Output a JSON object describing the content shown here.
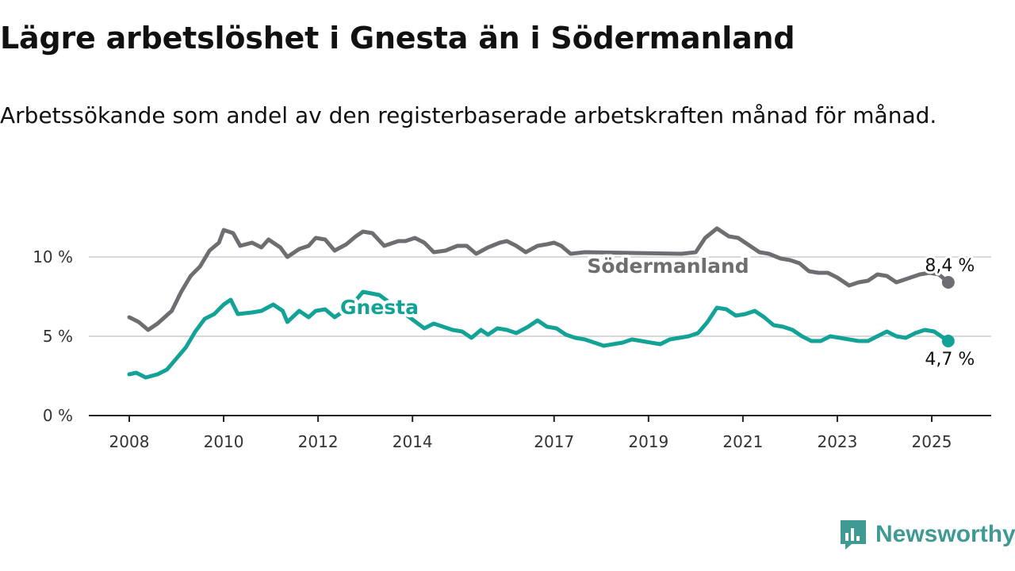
{
  "colors": {
    "gnesta": "#13a396",
    "sodermanland": "#6e6e72",
    "grid": "#d9d9d9",
    "axis": "#222222",
    "brand": "#3f9a94"
  },
  "brand": {
    "name": "Newsworthy",
    "icon": "bar-chart-speech-bubble-icon"
  },
  "chart_data": {
    "type": "line",
    "title": "Lägre arbetslöshet i Gnesta än i Södermanland",
    "subtitle": "Arbetssökande som andel av den registerbaserade arbetskraften månad för månad.",
    "xlabel": "",
    "ylabel": "",
    "x_ticks": [
      "2008",
      "2010",
      "2012",
      "2014",
      "2017",
      "2019",
      "2021",
      "2023",
      "2025"
    ],
    "y_ticks": [
      "0 %",
      "5 %",
      "10 %"
    ],
    "xlim": [
      2008,
      2025.4
    ],
    "ylim": [
      0,
      12
    ],
    "grid": true,
    "legend": "inline",
    "series": [
      {
        "name": "Södermanland",
        "end_label": "8,4 %",
        "values": [
          [
            2008.0,
            6.2
          ],
          [
            2008.2,
            5.9
          ],
          [
            2008.4,
            5.4
          ],
          [
            2008.6,
            5.8
          ],
          [
            2008.9,
            6.6
          ],
          [
            2009.1,
            7.8
          ],
          [
            2009.3,
            8.8
          ],
          [
            2009.5,
            9.4
          ],
          [
            2009.7,
            10.4
          ],
          [
            2009.9,
            10.9
          ],
          [
            2010.0,
            11.7
          ],
          [
            2010.2,
            11.5
          ],
          [
            2010.35,
            10.7
          ],
          [
            2010.6,
            10.9
          ],
          [
            2010.8,
            10.6
          ],
          [
            2010.95,
            11.1
          ],
          [
            2011.2,
            10.6
          ],
          [
            2011.35,
            10.0
          ],
          [
            2011.6,
            10.5
          ],
          [
            2011.8,
            10.7
          ],
          [
            2011.95,
            11.2
          ],
          [
            2012.15,
            11.1
          ],
          [
            2012.35,
            10.4
          ],
          [
            2012.6,
            10.8
          ],
          [
            2012.8,
            11.3
          ],
          [
            2012.95,
            11.6
          ],
          [
            2013.15,
            11.5
          ],
          [
            2013.4,
            10.7
          ],
          [
            2013.7,
            11.0
          ],
          [
            2013.85,
            11.0
          ],
          [
            2014.05,
            11.2
          ],
          [
            2014.25,
            10.9
          ],
          [
            2014.45,
            10.3
          ],
          [
            2014.7,
            10.4
          ],
          [
            2014.95,
            10.7
          ],
          [
            2015.15,
            10.7
          ],
          [
            2015.35,
            10.2
          ],
          [
            2015.6,
            10.6
          ],
          [
            2015.85,
            10.9
          ],
          [
            2016.0,
            11.0
          ],
          [
            2016.2,
            10.7
          ],
          [
            2016.4,
            10.3
          ],
          [
            2016.65,
            10.7
          ],
          [
            2016.85,
            10.8
          ],
          [
            2017.0,
            10.9
          ],
          [
            2017.15,
            10.7
          ],
          [
            2017.35,
            10.2
          ],
          [
            2017.65,
            10.3
          ],
          [
            2019.7,
            10.2
          ],
          [
            2020.0,
            10.3
          ],
          [
            2020.2,
            11.2
          ],
          [
            2020.45,
            11.8
          ],
          [
            2020.7,
            11.3
          ],
          [
            2020.9,
            11.2
          ],
          [
            2021.1,
            10.8
          ],
          [
            2021.35,
            10.3
          ],
          [
            2021.55,
            10.2
          ],
          [
            2021.8,
            9.9
          ],
          [
            2022.0,
            9.8
          ],
          [
            2022.2,
            9.6
          ],
          [
            2022.4,
            9.1
          ],
          [
            2022.6,
            9.0
          ],
          [
            2022.8,
            9.0
          ],
          [
            2023.0,
            8.7
          ],
          [
            2023.25,
            8.2
          ],
          [
            2023.45,
            8.4
          ],
          [
            2023.65,
            8.5
          ],
          [
            2023.85,
            8.9
          ],
          [
            2024.05,
            8.8
          ],
          [
            2024.25,
            8.4
          ],
          [
            2024.45,
            8.6
          ],
          [
            2024.75,
            8.9
          ],
          [
            2024.95,
            9.0
          ],
          [
            2025.15,
            8.9
          ],
          [
            2025.35,
            8.4
          ]
        ]
      },
      {
        "name": "Gnesta",
        "end_label": "4,7 %",
        "values": [
          [
            2008.0,
            2.6
          ],
          [
            2008.15,
            2.7
          ],
          [
            2008.35,
            2.4
          ],
          [
            2008.6,
            2.6
          ],
          [
            2008.8,
            2.9
          ],
          [
            2009.0,
            3.6
          ],
          [
            2009.2,
            4.3
          ],
          [
            2009.4,
            5.3
          ],
          [
            2009.6,
            6.1
          ],
          [
            2009.8,
            6.4
          ],
          [
            2010.0,
            7.0
          ],
          [
            2010.15,
            7.3
          ],
          [
            2010.3,
            6.4
          ],
          [
            2010.6,
            6.5
          ],
          [
            2010.8,
            6.6
          ],
          [
            2011.05,
            7.0
          ],
          [
            2011.25,
            6.6
          ],
          [
            2011.35,
            5.9
          ],
          [
            2011.6,
            6.6
          ],
          [
            2011.8,
            6.2
          ],
          [
            2011.95,
            6.6
          ],
          [
            2012.15,
            6.7
          ],
          [
            2012.35,
            6.2
          ],
          [
            2012.55,
            6.6
          ],
          [
            2012.75,
            7.1
          ],
          [
            2012.95,
            7.8
          ],
          [
            2013.3,
            7.6
          ],
          [
            2014.25,
            5.5
          ],
          [
            2014.45,
            5.8
          ],
          [
            2014.65,
            5.6
          ],
          [
            2014.85,
            5.4
          ],
          [
            2015.05,
            5.3
          ],
          [
            2015.25,
            4.9
          ],
          [
            2015.45,
            5.4
          ],
          [
            2015.6,
            5.1
          ],
          [
            2015.8,
            5.5
          ],
          [
            2016.0,
            5.4
          ],
          [
            2016.2,
            5.2
          ],
          [
            2016.45,
            5.6
          ],
          [
            2016.65,
            6.0
          ],
          [
            2016.85,
            5.6
          ],
          [
            2017.05,
            5.5
          ],
          [
            2017.25,
            5.1
          ],
          [
            2017.45,
            4.9
          ],
          [
            2017.65,
            4.8
          ],
          [
            2017.85,
            4.6
          ],
          [
            2018.05,
            4.4
          ],
          [
            2018.25,
            4.5
          ],
          [
            2018.45,
            4.6
          ],
          [
            2018.65,
            4.8
          ],
          [
            2018.85,
            4.7
          ],
          [
            2019.05,
            4.6
          ],
          [
            2019.25,
            4.5
          ],
          [
            2019.45,
            4.8
          ],
          [
            2019.65,
            4.9
          ],
          [
            2019.85,
            5.0
          ],
          [
            2020.05,
            5.2
          ],
          [
            2020.25,
            5.9
          ],
          [
            2020.45,
            6.8
          ],
          [
            2020.65,
            6.7
          ],
          [
            2020.85,
            6.3
          ],
          [
            2021.05,
            6.4
          ],
          [
            2021.25,
            6.6
          ],
          [
            2021.45,
            6.2
          ],
          [
            2021.65,
            5.7
          ],
          [
            2021.85,
            5.6
          ],
          [
            2022.05,
            5.4
          ],
          [
            2022.25,
            5.0
          ],
          [
            2022.45,
            4.7
          ],
          [
            2022.65,
            4.7
          ],
          [
            2022.85,
            5.0
          ],
          [
            2023.05,
            4.9
          ],
          [
            2023.25,
            4.8
          ],
          [
            2023.45,
            4.7
          ],
          [
            2023.65,
            4.7
          ],
          [
            2023.85,
            5.0
          ],
          [
            2024.05,
            5.3
          ],
          [
            2024.25,
            5.0
          ],
          [
            2024.45,
            4.9
          ],
          [
            2024.65,
            5.2
          ],
          [
            2024.85,
            5.4
          ],
          [
            2025.05,
            5.3
          ],
          [
            2025.2,
            5.0
          ],
          [
            2025.35,
            4.7
          ]
        ]
      }
    ]
  }
}
